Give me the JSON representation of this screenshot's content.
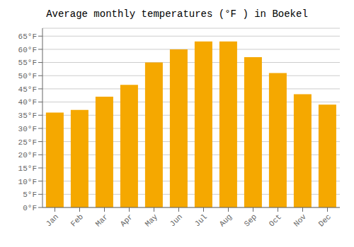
{
  "chart_data": {
    "type": "bar",
    "title": "Average monthly temperatures (°F ) in Boekel",
    "categories": [
      "Jan",
      "Feb",
      "Mar",
      "Apr",
      "May",
      "Jun",
      "Jul",
      "Aug",
      "Sep",
      "Oct",
      "Nov",
      "Dec"
    ],
    "values": [
      36,
      37,
      42,
      46.5,
      55,
      60,
      63,
      63,
      57,
      51,
      43,
      39
    ],
    "color": "#F5A800",
    "ylim": [
      0,
      68
    ],
    "yticks": [
      {
        "value": 0,
        "label": "0°F"
      },
      {
        "value": 5,
        "label": "5°F"
      },
      {
        "value": 10,
        "label": "10°F"
      },
      {
        "value": 15,
        "label": "15°F"
      },
      {
        "value": 20,
        "label": "20°F"
      },
      {
        "value": 25,
        "label": "25°F"
      },
      {
        "value": 30,
        "label": "30°F"
      },
      {
        "value": 35,
        "label": "35°F"
      },
      {
        "value": 40,
        "label": "40°F"
      },
      {
        "value": 45,
        "label": "45°F"
      },
      {
        "value": 50,
        "label": "50°F"
      },
      {
        "value": 55,
        "label": "55°F"
      },
      {
        "value": 60,
        "label": "60°F"
      },
      {
        "value": 65,
        "label": "65°F"
      }
    ],
    "grid": true
  }
}
